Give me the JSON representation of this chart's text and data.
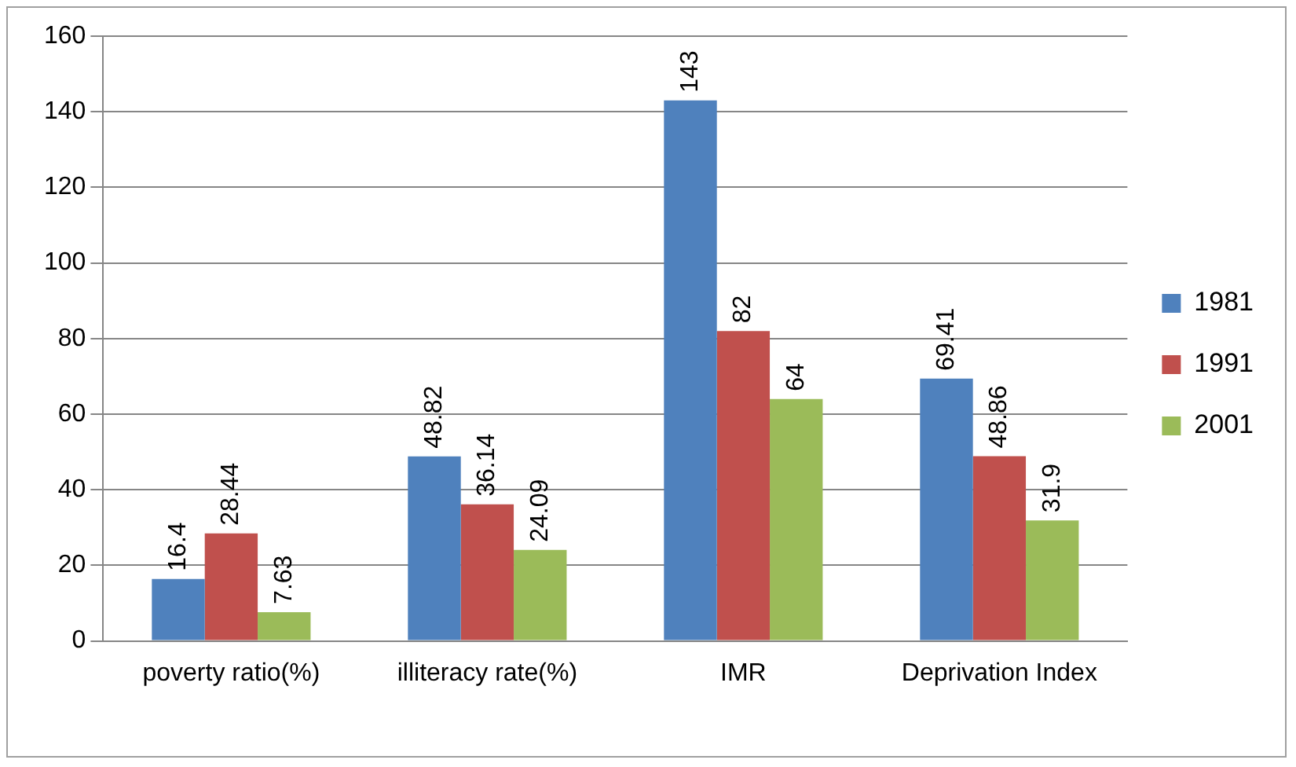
{
  "chart_data": {
    "type": "bar",
    "categories": [
      "poverty ratio(%)",
      "illiteracy rate(%)",
      "IMR",
      "Deprivation Index"
    ],
    "series": [
      {
        "name": "1981",
        "color": "#4f81bd",
        "values": [
          16.4,
          48.82,
          143,
          69.41
        ]
      },
      {
        "name": "1991",
        "color": "#c0504d",
        "values": [
          28.44,
          36.14,
          82,
          48.86
        ]
      },
      {
        "name": "2001",
        "color": "#9bbb59",
        "values": [
          7.63,
          24.09,
          64,
          31.9
        ]
      }
    ],
    "ylim": [
      0,
      160
    ],
    "yticks": [
      0,
      20,
      40,
      60,
      80,
      100,
      120,
      140,
      160
    ],
    "grid": "y",
    "legend": "right",
    "data_labels": true
  }
}
